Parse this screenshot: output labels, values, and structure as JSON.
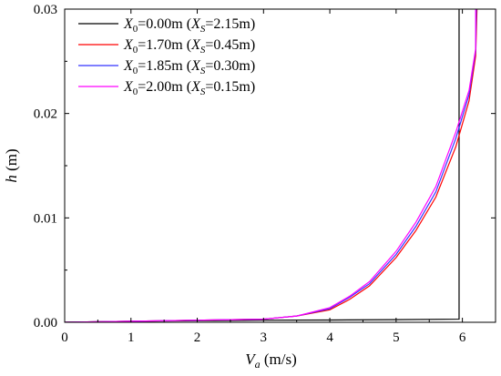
{
  "chart_data": {
    "type": "line",
    "xlabel": {
      "symbol": "V",
      "subscript": "a",
      "unit": " (m/s)"
    },
    "ylabel": {
      "symbol": "h",
      "unit": " (m)"
    },
    "xlim": [
      0,
      6.5
    ],
    "ylim": [
      0,
      0.03
    ],
    "x_ticks": [
      0,
      1,
      2,
      3,
      4,
      5,
      6
    ],
    "x_tick_labels": [
      "0",
      "1",
      "2",
      "3",
      "4",
      "5",
      "6"
    ],
    "y_ticks": [
      0,
      0.01,
      0.02,
      0.03
    ],
    "y_tick_labels": [
      "0.00",
      "0.01",
      "0.02",
      "0.03"
    ],
    "legend_position": "top-left",
    "series": [
      {
        "legend": {
          "x0_sub": "0",
          "x0_val": "=0.00m (",
          "xs_sub": "S",
          "xs_val": "=2.15m)"
        },
        "color": "#000000",
        "points": [
          [
            0,
            0
          ],
          [
            1,
            0.0001
          ],
          [
            2,
            0.00015
          ],
          [
            3,
            0.0002
          ],
          [
            4,
            0.00022
          ],
          [
            5,
            0.00025
          ],
          [
            5.95,
            0.0003
          ],
          [
            5.95,
            0.03
          ]
        ]
      },
      {
        "legend": {
          "x0_sub": "0",
          "x0_val": "=1.70m (",
          "xs_sub": "S",
          "xs_val": "=0.45m)"
        },
        "color": "#ff0000",
        "points": [
          [
            0,
            0
          ],
          [
            1,
            0.0001
          ],
          [
            2,
            0.0002
          ],
          [
            3,
            0.0003
          ],
          [
            3.5,
            0.0006
          ],
          [
            4,
            0.0012
          ],
          [
            4.3,
            0.0022
          ],
          [
            4.6,
            0.0035
          ],
          [
            5,
            0.0062
          ],
          [
            5.3,
            0.0088
          ],
          [
            5.6,
            0.012
          ],
          [
            5.9,
            0.0168
          ],
          [
            6.1,
            0.0212
          ],
          [
            6.2,
            0.0255
          ],
          [
            6.22,
            0.03
          ]
        ]
      },
      {
        "legend": {
          "x0_sub": "0",
          "x0_val": "=1.85m (",
          "xs_sub": "S",
          "xs_val": "=0.30m)"
        },
        "color": "#3333ff",
        "points": [
          [
            0,
            0
          ],
          [
            1,
            0.0001
          ],
          [
            2,
            0.0002
          ],
          [
            3,
            0.0003
          ],
          [
            3.5,
            0.0006
          ],
          [
            4,
            0.0013
          ],
          [
            4.3,
            0.0024
          ],
          [
            4.6,
            0.0037
          ],
          [
            5,
            0.0065
          ],
          [
            5.3,
            0.0092
          ],
          [
            5.6,
            0.0125
          ],
          [
            5.9,
            0.0176
          ],
          [
            6.1,
            0.0218
          ],
          [
            6.2,
            0.026
          ],
          [
            6.21,
            0.03
          ]
        ]
      },
      {
        "legend": {
          "x0_sub": "0",
          "x0_val": "=2.00m (",
          "xs_sub": "S",
          "xs_val": "=0.15m)"
        },
        "color": "#ff00ff",
        "points": [
          [
            0,
            0
          ],
          [
            1,
            0.0001
          ],
          [
            2,
            0.0002
          ],
          [
            3,
            0.0003
          ],
          [
            3.5,
            0.0006
          ],
          [
            4,
            0.0014
          ],
          [
            4.3,
            0.0025
          ],
          [
            4.6,
            0.0039
          ],
          [
            5,
            0.0068
          ],
          [
            5.3,
            0.0096
          ],
          [
            5.6,
            0.013
          ],
          [
            5.9,
            0.0182
          ],
          [
            6.1,
            0.0222
          ],
          [
            6.2,
            0.0262
          ],
          [
            6.2,
            0.03
          ]
        ]
      }
    ]
  }
}
